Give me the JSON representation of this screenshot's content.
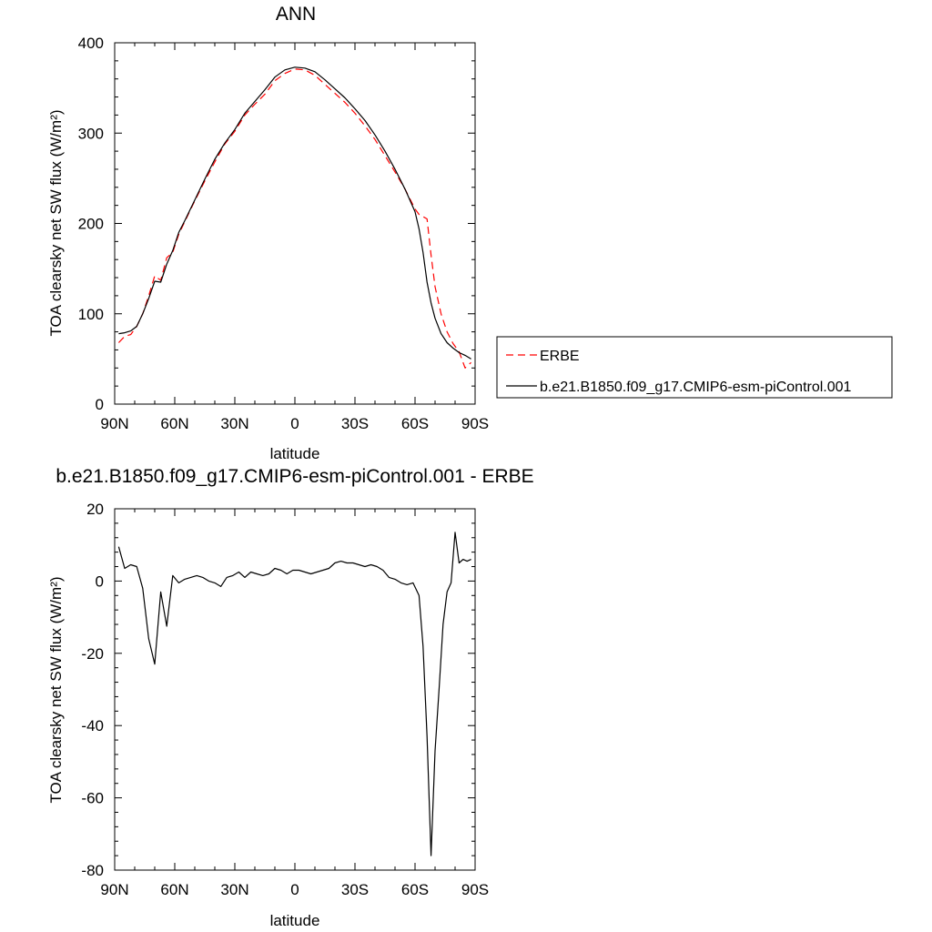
{
  "chart_data": [
    {
      "type": "line",
      "title": "ANN",
      "xlabel": "latitude",
      "ylabel": "TOA clearsky net SW flux (W/m²)",
      "xlim": [
        90,
        -90
      ],
      "ylim": [
        0,
        400
      ],
      "xticks": [
        90,
        60,
        30,
        0,
        -30,
        -60,
        -90
      ],
      "xtick_labels": [
        "90N",
        "60N",
        "30N",
        "0",
        "30S",
        "60S",
        "90S"
      ],
      "yticks": [
        0,
        100,
        200,
        300,
        400
      ],
      "ytick_labels": [
        "0",
        "100",
        "200",
        "300",
        "400"
      ],
      "grid": false,
      "legend": "right",
      "series": [
        {
          "name": "ERBE",
          "color": "#ff0000",
          "style": "dashed",
          "x": [
            88,
            85,
            82,
            79,
            76,
            73,
            70,
            67,
            64,
            61,
            58,
            55,
            50,
            45,
            40,
            35,
            30,
            25,
            20,
            15,
            10,
            5,
            0,
            -5,
            -10,
            -15,
            -20,
            -25,
            -30,
            -35,
            -40,
            -45,
            -50,
            -55,
            -60,
            -62,
            -66,
            -68,
            -70,
            -73,
            -76,
            -79,
            -82,
            -85,
            -88
          ],
          "y": [
            68,
            75,
            77,
            86,
            100,
            120,
            142,
            137,
            162,
            168,
            188,
            202,
            225,
            247,
            268,
            288,
            302,
            320,
            332,
            343,
            358,
            366,
            371,
            370,
            364,
            354,
            344,
            334,
            322,
            308,
            293,
            275,
            257,
            238,
            216,
            210,
            205,
            165,
            130,
            100,
            80,
            67,
            58,
            40,
            46
          ]
        },
        {
          "name": "b.e21.B1850.f09_g17.CMIP6-esm-piControl.001",
          "color": "#000000",
          "style": "solid",
          "x": [
            88,
            85,
            82,
            79,
            76,
            73,
            70,
            67,
            64,
            61,
            58,
            55,
            50,
            45,
            40,
            35,
            30,
            25,
            20,
            15,
            10,
            5,
            0,
            -5,
            -10,
            -15,
            -20,
            -25,
            -30,
            -35,
            -40,
            -45,
            -50,
            -55,
            -60,
            -62,
            -64,
            -66,
            -68,
            -70,
            -73,
            -76,
            -79,
            -82,
            -85,
            -88
          ],
          "y": [
            78,
            79,
            81,
            86,
            100,
            117,
            136,
            135,
            155,
            170,
            190,
            203,
            226,
            249,
            271,
            289,
            304,
            322,
            335,
            348,
            362,
            370,
            373,
            372,
            368,
            359,
            349,
            339,
            327,
            314,
            298,
            280,
            260,
            238,
            213,
            194,
            168,
            135,
            112,
            95,
            78,
            68,
            62,
            57,
            54,
            50
          ]
        }
      ]
    },
    {
      "type": "line",
      "title": "b.e21.B1850.f09_g17.CMIP6-esm-piControl.001 - ERBE",
      "xlabel": "latitude",
      "ylabel": "TOA clearsky net SW flux (W/m²)",
      "xlim": [
        90,
        -90
      ],
      "ylim": [
        -80,
        20
      ],
      "xticks": [
        90,
        60,
        30,
        0,
        -30,
        -60,
        -90
      ],
      "xtick_labels": [
        "90N",
        "60N",
        "30N",
        "0",
        "30S",
        "60S",
        "90S"
      ],
      "yticks": [
        -80,
        -60,
        -40,
        -20,
        0,
        20
      ],
      "ytick_labels": [
        "-80",
        "-60",
        "-40",
        "-20",
        "0",
        "20"
      ],
      "grid": false,
      "series": [
        {
          "color": "#000000",
          "style": "solid",
          "x": [
            88,
            85,
            82,
            79,
            76,
            73,
            70,
            67,
            64,
            61,
            58,
            55,
            52,
            49,
            46,
            43,
            40,
            37,
            34,
            31,
            28,
            25,
            22,
            19,
            16,
            13,
            10,
            7,
            4,
            1,
            -2,
            -5,
            -8,
            -11,
            -14,
            -17,
            -20,
            -23,
            -26,
            -29,
            -32,
            -35,
            -38,
            -41,
            -44,
            -47,
            -50,
            -53,
            -56,
            -59,
            -62,
            -64,
            -66,
            -68,
            -70,
            -72,
            -74,
            -76,
            -78,
            -80,
            -82,
            -84,
            -86,
            -88
          ],
          "y": [
            9.5,
            3.5,
            4.5,
            4,
            -2,
            -16,
            -23,
            -3,
            -12.5,
            1.5,
            -0.5,
            0.5,
            1,
            1.5,
            1,
            0,
            -0.5,
            -1.5,
            1,
            1.5,
            2.5,
            1,
            2.5,
            2,
            1.5,
            2,
            3.5,
            3,
            2,
            3,
            3,
            2.5,
            2,
            2.5,
            3,
            3.5,
            5,
            5.5,
            5,
            5,
            4.5,
            4,
            4.5,
            4,
            3,
            1,
            0.5,
            -0.5,
            -1,
            -0.5,
            -4,
            -18,
            -43,
            -76,
            -47,
            -30,
            -12,
            -3,
            -0.5,
            13.5,
            5,
            6,
            5.5,
            6
          ]
        }
      ]
    }
  ]
}
